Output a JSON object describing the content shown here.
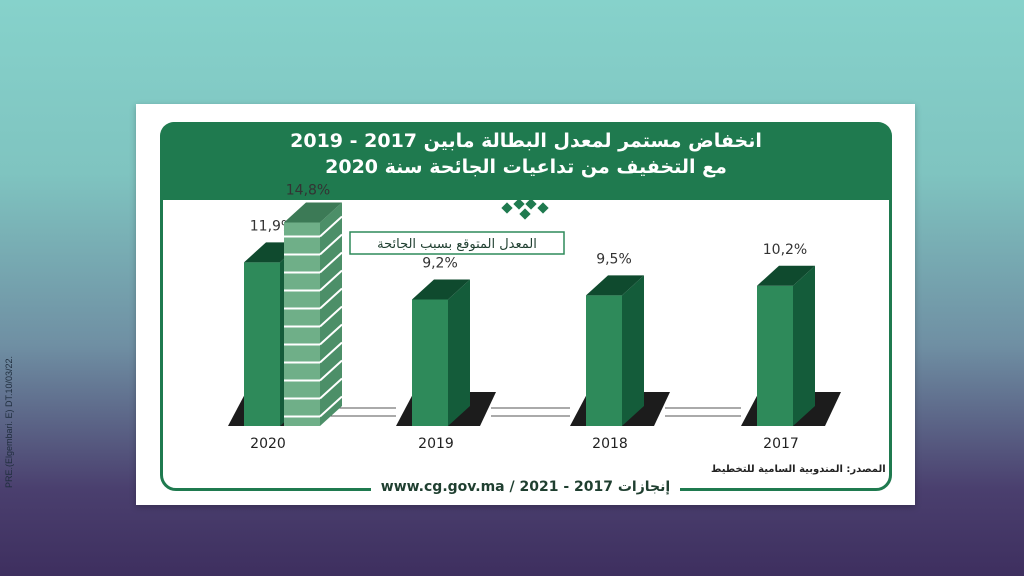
{
  "side_note": "PRE.(Elgembari. E) DT.10/03/22.",
  "title": {
    "line1": "انخفاض مستمر لمعدل البطالة مابين 2017 - 2019",
    "line2": "مع التخفيف من تداعيات الجائحة سنة 2020"
  },
  "callout": "المعدل المتوقع بسبب الجائحة",
  "source": "المصدر: المندوبية السامية للتخطيط",
  "footer": "www.cg.gov.ma / 2021 - 2017 إنجازات",
  "colors": {
    "brand_green": "#1f7a4f",
    "bar_front": "#2e8a5a",
    "bar_side": "#145c3a",
    "bar_top": "#0f4a2e"
  },
  "chart_data": {
    "type": "bar",
    "categories": [
      "2020",
      "2019",
      "2018",
      "2017"
    ],
    "series": [
      {
        "values": [
          11.9,
          9.2,
          9.5,
          10.2
        ]
      }
    ],
    "expected": {
      "category": "2020",
      "value": 14.8
    },
    "value_labels": [
      "11,9%",
      "9,2%",
      "9,5%",
      "10,2%"
    ],
    "expected_label": "14,8%",
    "ylim": [
      0,
      16
    ]
  }
}
